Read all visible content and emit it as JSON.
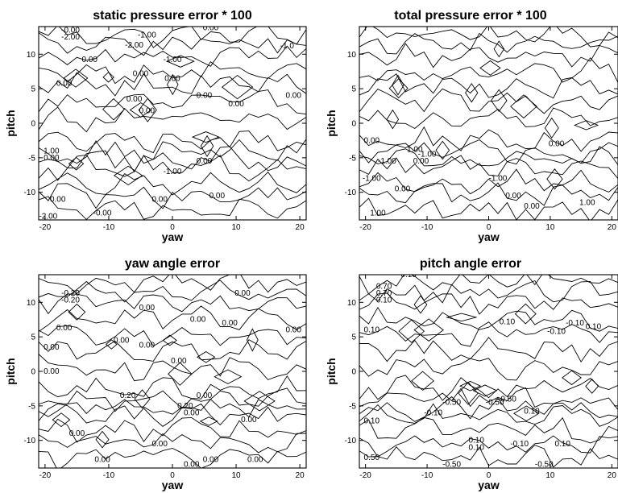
{
  "chart_data": [
    {
      "type": "contour",
      "title": "static pressure error * 100",
      "xlabel": "yaw",
      "ylabel": "pitch",
      "xlim": [
        -21,
        21
      ],
      "ylim": [
        -14,
        14
      ],
      "xticks": [
        "-20",
        "-10",
        "0",
        "10",
        "20"
      ],
      "yticks": [
        "10",
        "5",
        "0",
        "-5",
        "-10"
      ],
      "contour_labels": [
        {
          "text": "-0.00",
          "x": -16,
          "y": 13.5
        },
        {
          "text": "-2.00",
          "x": -16,
          "y": 12.5
        },
        {
          "text": "-1.00",
          "x": -4,
          "y": 12.8
        },
        {
          "text": "-2.00",
          "x": -6,
          "y": 11.3
        },
        {
          "text": "0.00",
          "x": 6,
          "y": 13.8
        },
        {
          "text": "-1.0",
          "x": 18,
          "y": 11.2
        },
        {
          "text": "0.00",
          "x": -13,
          "y": 9.2
        },
        {
          "text": "-1.00",
          "x": 0,
          "y": 9.2
        },
        {
          "text": "0.00",
          "x": -17,
          "y": 5.8
        },
        {
          "text": "0.00",
          "x": -5,
          "y": 7.2
        },
        {
          "text": "0.00",
          "x": 0,
          "y": 6.5
        },
        {
          "text": "0.00",
          "x": -6,
          "y": 3.5
        },
        {
          "text": "0.00",
          "x": -4,
          "y": 1.8
        },
        {
          "text": "0.00",
          "x": 5,
          "y": 4.0
        },
        {
          "text": "0.00",
          "x": 10,
          "y": 2.8
        },
        {
          "text": "0.00",
          "x": 19,
          "y": 4.0
        },
        {
          "text": "1.00",
          "x": -19,
          "y": -4.0
        },
        {
          "text": "0.00",
          "x": -19,
          "y": -5.0
        },
        {
          "text": "-1.00",
          "x": 0,
          "y": -7.0
        },
        {
          "text": "0.00",
          "x": 5,
          "y": -5.5
        },
        {
          "text": "0.00",
          "x": 7,
          "y": -10.5
        },
        {
          "text": "0.00",
          "x": -18,
          "y": -11.0
        },
        {
          "text": "0.00",
          "x": -2,
          "y": -11.0
        },
        {
          "text": "-0.00",
          "x": -11,
          "y": -13.0
        },
        {
          "text": "-2.00",
          "x": -19.5,
          "y": -13.5
        }
      ]
    },
    {
      "type": "contour",
      "title": "total pressure error * 100",
      "xlabel": "yaw",
      "ylabel": "pitch",
      "xlim": [
        -21,
        21
      ],
      "ylim": [
        -14,
        14
      ],
      "xticks": [
        "-20",
        "-10",
        "0",
        "10",
        "20"
      ],
      "yticks": [
        "10",
        "5",
        "0",
        "-5",
        "-10"
      ],
      "contour_labels": [
        {
          "text": "0.00",
          "x": -19,
          "y": -2.5
        },
        {
          "text": "0.00",
          "x": 11,
          "y": -3.0
        },
        {
          "text": "-1.00",
          "x": -10,
          "y": -4.5
        },
        {
          "text": "0.00",
          "x": -11,
          "y": -5.5
        },
        {
          "text": "1.00",
          "x": -12,
          "y": -3.8
        },
        {
          "text": "-1.00",
          "x": -16.5,
          "y": -5.5
        },
        {
          "text": "-1.00",
          "x": -19,
          "y": -8.0
        },
        {
          "text": "0.00",
          "x": -14,
          "y": -9.5
        },
        {
          "text": "-1.00",
          "x": 1.5,
          "y": -8.0
        },
        {
          "text": "0.00",
          "x": 4,
          "y": -10.5
        },
        {
          "text": "0.00",
          "x": 7,
          "y": -12.0
        },
        {
          "text": "1.00",
          "x": 16,
          "y": -11.5
        },
        {
          "text": "1.00",
          "x": -18,
          "y": -13.0
        }
      ]
    },
    {
      "type": "contour",
      "title": "yaw angle error",
      "xlabel": "yaw",
      "ylabel": "pitch",
      "xlim": [
        -21,
        21
      ],
      "ylim": [
        -14,
        14
      ],
      "xticks": [
        "-20",
        "-10",
        "0",
        "10",
        "20"
      ],
      "yticks": [
        "10",
        "5",
        "0",
        "-5",
        "-10"
      ],
      "contour_labels": [
        {
          "text": "-0.20",
          "x": -16,
          "y": 11.3
        },
        {
          "text": "-0.20",
          "x": -16,
          "y": 10.3
        },
        {
          "text": "0.00",
          "x": 11,
          "y": 11.3
        },
        {
          "text": "0.00",
          "x": -4,
          "y": 9.2
        },
        {
          "text": "0.00",
          "x": -17,
          "y": 6.3
        },
        {
          "text": "0.00",
          "x": 4,
          "y": 7.5
        },
        {
          "text": "0.00",
          "x": 9,
          "y": 7.0
        },
        {
          "text": "0.00",
          "x": 19,
          "y": 6.0
        },
        {
          "text": "0.00",
          "x": -8,
          "y": 4.5
        },
        {
          "text": "0.00",
          "x": -4,
          "y": 3.8
        },
        {
          "text": "0.00",
          "x": -19,
          "y": 3.5
        },
        {
          "text": "0.00",
          "x": 1,
          "y": 1.5
        },
        {
          "text": "0.00",
          "x": -19,
          "y": 0.0
        },
        {
          "text": "0.20",
          "x": -7,
          "y": -3.5
        },
        {
          "text": "0.00",
          "x": 5,
          "y": -3.5
        },
        {
          "text": "0.20",
          "x": 2,
          "y": -5.0
        },
        {
          "text": "0.00",
          "x": 3,
          "y": -6.0
        },
        {
          "text": "0.00",
          "x": 12,
          "y": -7.0
        },
        {
          "text": "0.00",
          "x": -15,
          "y": -9.0
        },
        {
          "text": "0.00",
          "x": -2,
          "y": -10.5
        },
        {
          "text": "0.00",
          "x": -11,
          "y": -12.8
        },
        {
          "text": "0.00",
          "x": 6,
          "y": -12.8
        },
        {
          "text": "0.00",
          "x": 3,
          "y": -13.5
        },
        {
          "text": "0.00",
          "x": 13,
          "y": -12.8
        }
      ]
    },
    {
      "type": "contour",
      "title": "pitch angle error",
      "xlabel": "yaw",
      "ylabel": "pitch",
      "xlim": [
        -21,
        21
      ],
      "ylim": [
        -14,
        14
      ],
      "xticks": [
        "-20",
        "-10",
        "0",
        "10",
        "20"
      ],
      "yticks": [
        "10",
        "5",
        "0",
        "-5",
        "-10"
      ],
      "contour_labels": [
        {
          "text": "0.10",
          "x": -13,
          "y": 14.0
        },
        {
          "text": "0.70",
          "x": -17,
          "y": 12.3
        },
        {
          "text": "0.70",
          "x": -17,
          "y": 11.3
        },
        {
          "text": "0.10",
          "x": -17,
          "y": 10.3
        },
        {
          "text": "0.10",
          "x": 3,
          "y": 7.2
        },
        {
          "text": "-0.10",
          "x": 11,
          "y": 5.8
        },
        {
          "text": "-0.10",
          "x": 14,
          "y": 7.0
        },
        {
          "text": "0.10",
          "x": 17,
          "y": 6.5
        },
        {
          "text": "0.10",
          "x": -19,
          "y": 6.0
        },
        {
          "text": "-0.50",
          "x": -6,
          "y": -4.5
        },
        {
          "text": "-0.50",
          "x": 3,
          "y": -4.0
        },
        {
          "text": "-0.50",
          "x": 1,
          "y": -4.5
        },
        {
          "text": "0.10",
          "x": 7,
          "y": -5.8
        },
        {
          "text": "-0.10",
          "x": -9,
          "y": -6.0
        },
        {
          "text": "0.10",
          "x": -19,
          "y": -7.2
        },
        {
          "text": "0.10",
          "x": -2,
          "y": -10.0
        },
        {
          "text": "0.10",
          "x": -2,
          "y": -11.0
        },
        {
          "text": "-0.10",
          "x": 5,
          "y": -10.5
        },
        {
          "text": "0.10",
          "x": 12,
          "y": -10.5
        },
        {
          "text": "0.50",
          "x": -19,
          "y": -12.5
        },
        {
          "text": "-0.50",
          "x": -6,
          "y": -13.5
        },
        {
          "text": "-0.50",
          "x": 9,
          "y": -13.5
        }
      ]
    }
  ]
}
